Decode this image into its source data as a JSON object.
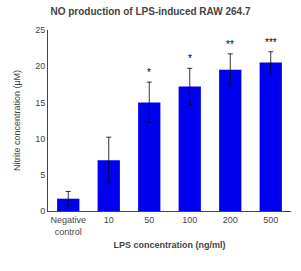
{
  "chart_data": {
    "type": "bar",
    "title": "NO production of LPS-induced RAW 264.7",
    "xlabel": "LPS concentration (ng/ml)",
    "ylabel": "Nitrite concentration (μM)",
    "categories": [
      "Negative\ncontrol",
      "10",
      "50",
      "100",
      "200",
      "500"
    ],
    "values": [
      1.7,
      7.0,
      15.0,
      17.2,
      19.5,
      20.5
    ],
    "errors": [
      1.0,
      3.2,
      2.8,
      2.5,
      2.2,
      1.5
    ],
    "color": "#0000EE",
    "ylim": [
      0,
      25
    ],
    "yticks": [
      0,
      5,
      10,
      15,
      20,
      25
    ],
    "annotations": [
      {
        "category": "50",
        "text": "*"
      },
      {
        "category": "100",
        "text": "*"
      },
      {
        "category": "200",
        "text": "**"
      },
      {
        "category": "500",
        "text": "***"
      }
    ],
    "grid": false
  }
}
